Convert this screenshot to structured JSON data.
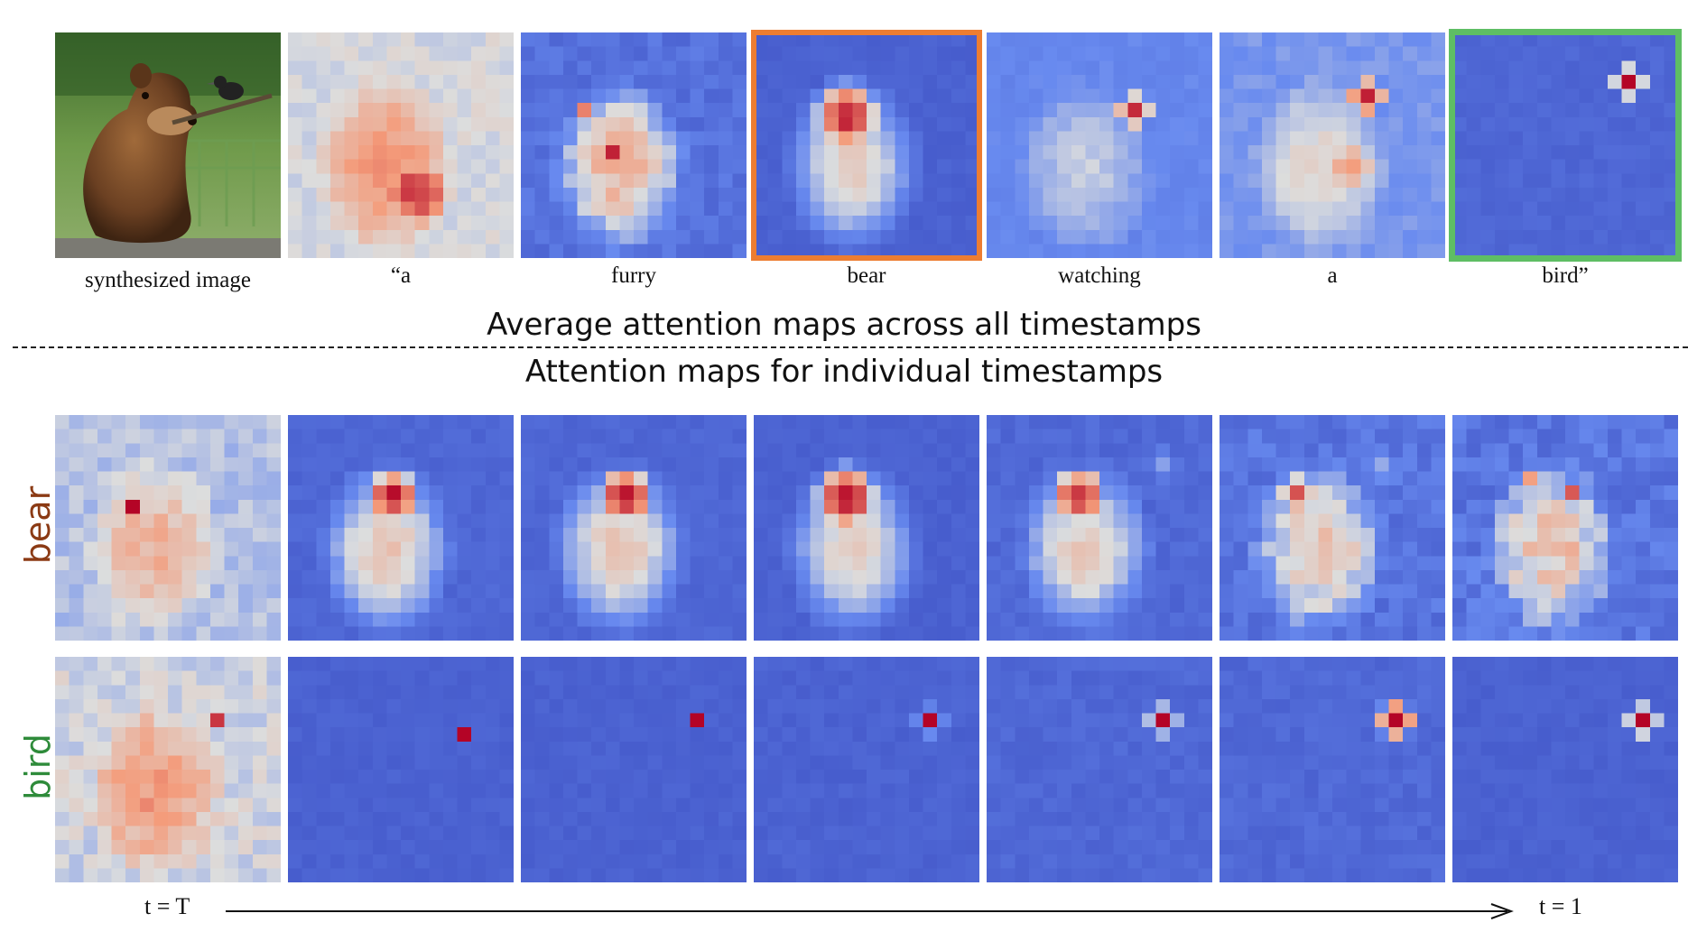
{
  "top_row": {
    "image_caption": "synthesized image",
    "tokens": [
      {
        "word": "“a",
        "highlight": ""
      },
      {
        "word": "furry",
        "highlight": ""
      },
      {
        "word": "bear",
        "highlight": "#ed7d31"
      },
      {
        "word": "watching",
        "highlight": ""
      },
      {
        "word": "a",
        "highlight": ""
      },
      {
        "word": "bird”",
        "highlight": "#5ebe64"
      }
    ]
  },
  "heading_average": "Average attention maps across all timestamps",
  "heading_individual": "Attention maps for individual  timestamps",
  "rows": [
    {
      "label": "bear",
      "color": "#8b3a14"
    },
    {
      "label": "bird",
      "color": "#2e8b3a"
    }
  ],
  "time_axis": {
    "start": "t = T",
    "end": "t = 1"
  },
  "colors": {
    "low": "#3b4cc0",
    "mid": "#dcdddd",
    "high": "#b40426"
  }
}
